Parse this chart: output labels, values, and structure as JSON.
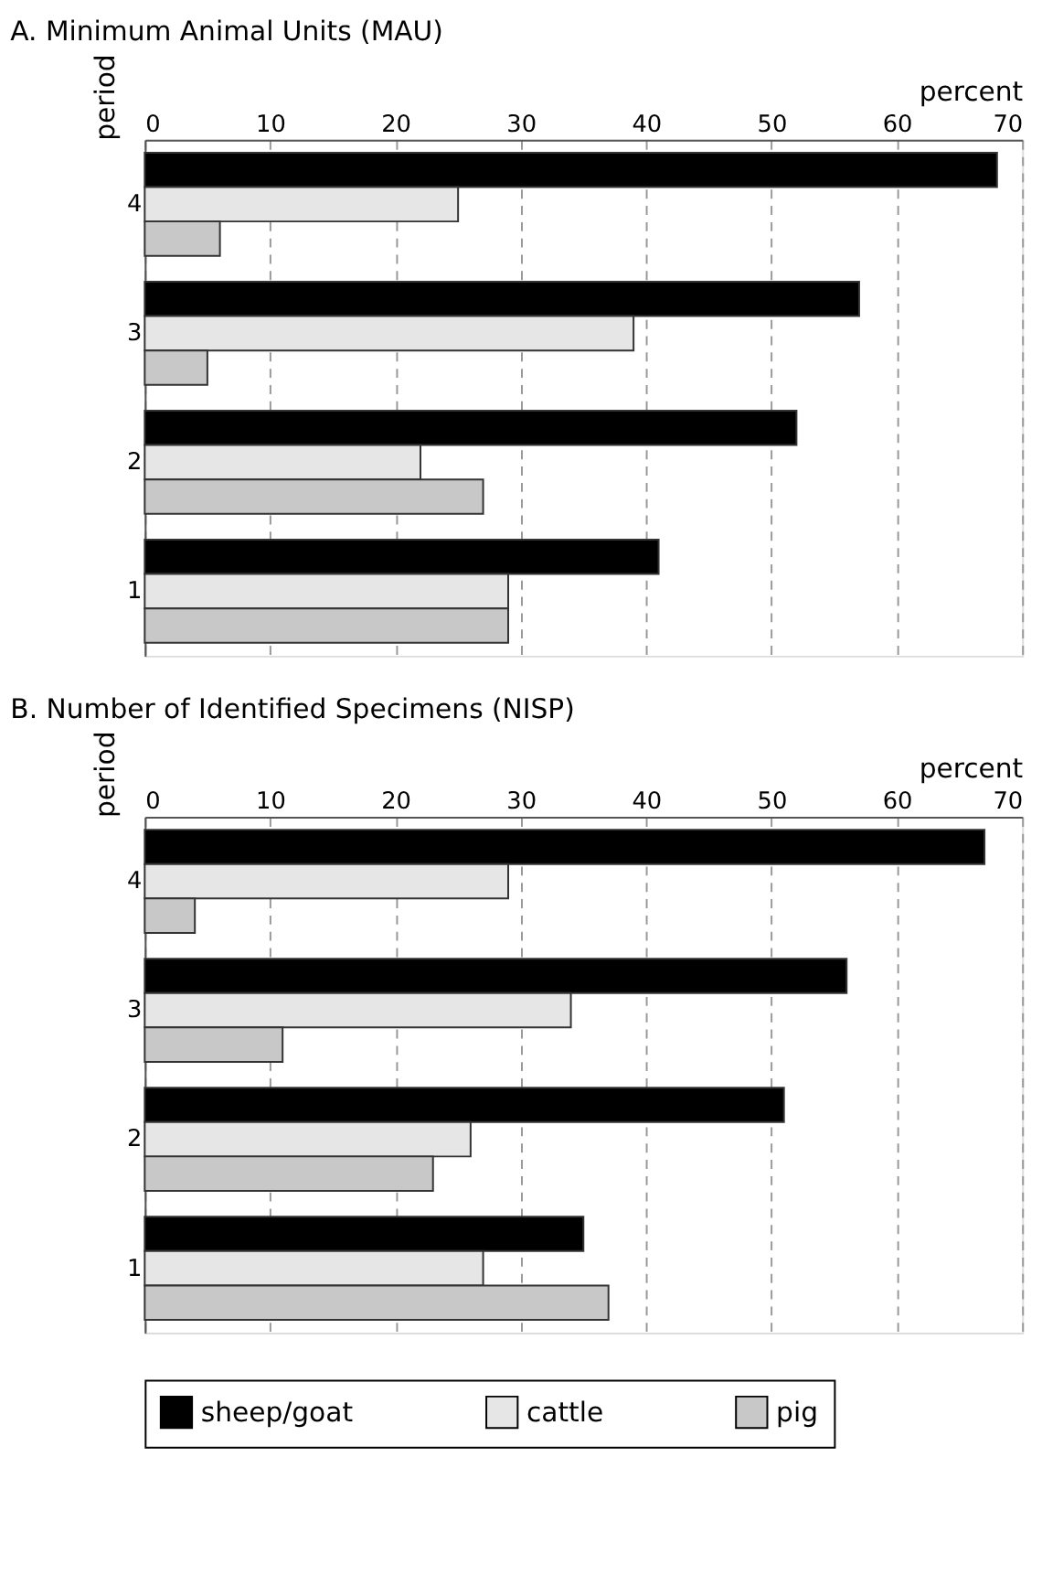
{
  "chart_data": [
    {
      "type": "bar",
      "orientation": "horizontal",
      "title": "A. Minimum Animal Units (MAU)",
      "xlabel": "percent",
      "ylabel": "period",
      "categories": [
        "4",
        "3",
        "2",
        "1"
      ],
      "xlim": [
        0,
        70
      ],
      "xticks": [
        0,
        10,
        20,
        30,
        40,
        50,
        60,
        70
      ],
      "grid": "x",
      "legend": "bottom",
      "series": [
        {
          "name": "sheep/goat",
          "color": "#000000",
          "values": [
            68,
            57,
            52,
            41
          ]
        },
        {
          "name": "cattle",
          "color": "#e6e6e6",
          "values": [
            25,
            39,
            22,
            29
          ]
        },
        {
          "name": "pig",
          "color": "#c8c8c8",
          "values": [
            6,
            5,
            27,
            29
          ]
        }
      ]
    },
    {
      "type": "bar",
      "orientation": "horizontal",
      "title": "B. Number of Identified Specimens (NISP)",
      "xlabel": "percent",
      "ylabel": "period",
      "categories": [
        "4",
        "3",
        "2",
        "1"
      ],
      "xlim": [
        0,
        70
      ],
      "xticks": [
        0,
        10,
        20,
        30,
        40,
        50,
        60,
        70
      ],
      "grid": "x",
      "legend": "bottom",
      "series": [
        {
          "name": "sheep/goat",
          "color": "#000000",
          "values": [
            67,
            56,
            51,
            35
          ]
        },
        {
          "name": "cattle",
          "color": "#e6e6e6",
          "values": [
            29,
            34,
            26,
            27
          ]
        },
        {
          "name": "pig",
          "color": "#c8c8c8",
          "values": [
            4,
            11,
            23,
            37
          ]
        }
      ]
    }
  ]
}
